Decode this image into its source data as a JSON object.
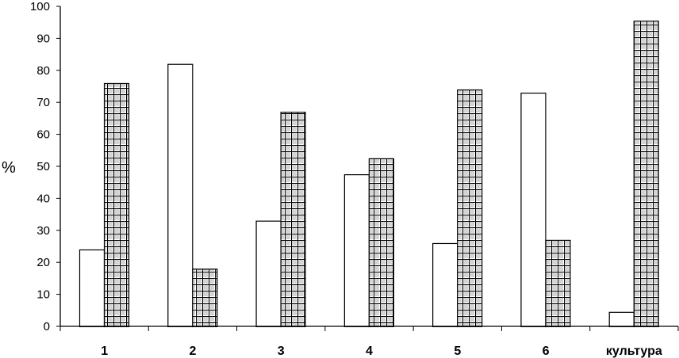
{
  "chart_data": {
    "type": "bar",
    "categories": [
      "1",
      "2",
      "3",
      "4",
      "5",
      "6",
      "культура"
    ],
    "series": [
      {
        "values": [
          24,
          82,
          33,
          47.5,
          26,
          73,
          4.5
        ],
        "fill": "white"
      },
      {
        "values": [
          76,
          18,
          67,
          52.5,
          74,
          27,
          95.5
        ],
        "fill": "grid-dotted"
      }
    ],
    "ylabel": "%",
    "xlabel": "",
    "title": "",
    "ylim": [
      0,
      100
    ],
    "y_ticks": [
      0,
      10,
      20,
      30,
      40,
      50,
      60,
      70,
      80,
      90,
      100
    ],
    "grid": false,
    "legend": "none"
  }
}
